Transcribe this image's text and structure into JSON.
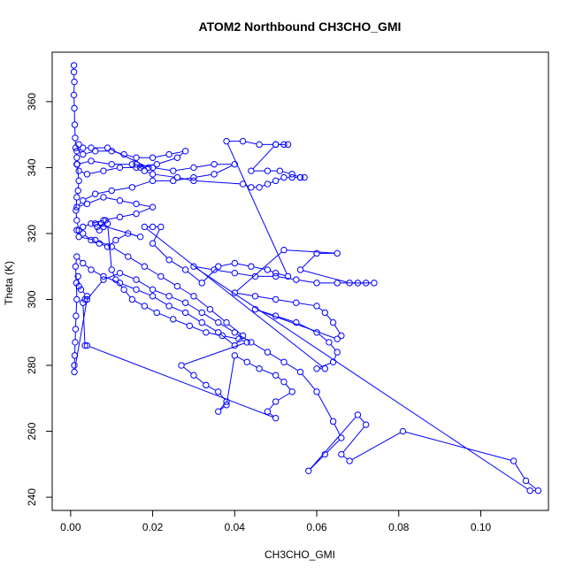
{
  "chart_data": {
    "type": "scatter",
    "title": "ATOM2 Northbound CH3CHO_GMI",
    "xlabel": "CH3CHO_GMI",
    "ylabel": "Theta (K)",
    "xlim": [
      -0.0045,
      0.1165
    ],
    "ylim": [
      236,
      375
    ],
    "xticks": [
      "0.00",
      "0.02",
      "0.04",
      "0.06",
      "0.08",
      "0.10"
    ],
    "yticks": [
      "240",
      "260",
      "280",
      "300",
      "320",
      "340",
      "360"
    ],
    "grid": false,
    "legend": "none",
    "colors": {
      "series": "#0000ff",
      "axes": "#000000"
    },
    "series": [
      {
        "points": [
          [
            0.0008,
            371
          ],
          [
            0.0008,
            369
          ],
          [
            0.0009,
            366
          ],
          [
            0.0008,
            362
          ],
          [
            0.0009,
            358
          ],
          [
            0.001,
            353
          ],
          [
            0.0011,
            349
          ],
          [
            0.0012,
            346
          ],
          [
            0.003,
            344
          ],
          [
            0.006,
            345
          ],
          [
            0.01,
            345
          ],
          [
            0.013,
            344
          ],
          [
            0.016,
            343
          ],
          [
            0.02,
            343
          ],
          [
            0.024,
            344
          ],
          [
            0.028,
            345
          ],
          [
            0.026,
            343
          ],
          [
            0.021,
            341
          ],
          [
            0.016,
            340
          ],
          [
            0.012,
            340
          ],
          [
            0.008,
            339
          ],
          [
            0.004,
            338
          ],
          [
            0.002,
            339
          ],
          [
            0.0015,
            341
          ],
          [
            0.005,
            342
          ],
          [
            0.01,
            341
          ],
          [
            0.015,
            341
          ],
          [
            0.02,
            340
          ],
          [
            0.025,
            339
          ],
          [
            0.03,
            340
          ],
          [
            0.035,
            341
          ],
          [
            0.04,
            341
          ],
          [
            0.035,
            338
          ],
          [
            0.03,
            337
          ],
          [
            0.025,
            336
          ],
          [
            0.02,
            336
          ],
          [
            0.015,
            334
          ],
          [
            0.01,
            333
          ],
          [
            0.006,
            332
          ],
          [
            0.003,
            330
          ],
          [
            0.0015,
            328
          ],
          [
            0.004,
            329
          ],
          [
            0.008,
            331
          ],
          [
            0.012,
            330
          ],
          [
            0.016,
            329
          ],
          [
            0.02,
            328
          ],
          [
            0.016,
            326
          ],
          [
            0.012,
            325
          ],
          [
            0.008,
            324
          ],
          [
            0.005,
            323
          ],
          [
            0.003,
            322
          ],
          [
            0.0015,
            321
          ],
          [
            0.002,
            319
          ],
          [
            0.006,
            318
          ],
          [
            0.01,
            316
          ],
          [
            0.014,
            313
          ],
          [
            0.018,
            310
          ],
          [
            0.022,
            307
          ],
          [
            0.026,
            304
          ],
          [
            0.03,
            301
          ],
          [
            0.034,
            297
          ],
          [
            0.038,
            293
          ],
          [
            0.042,
            289
          ],
          [
            0.04,
            286
          ],
          [
            0.036,
            290
          ],
          [
            0.032,
            293
          ],
          [
            0.028,
            296
          ],
          [
            0.024,
            298
          ],
          [
            0.02,
            301
          ],
          [
            0.016,
            303
          ],
          [
            0.012,
            305
          ],
          [
            0.008,
            307
          ],
          [
            0.005,
            309
          ],
          [
            0.003,
            311
          ],
          [
            0.0015,
            313
          ],
          [
            0.0012,
            310
          ],
          [
            0.0014,
            305
          ],
          [
            0.0015,
            300
          ],
          [
            0.0013,
            295
          ],
          [
            0.0012,
            291
          ],
          [
            0.0011,
            287
          ],
          [
            0.001,
            283
          ],
          [
            0.0009,
            280
          ],
          [
            0.0009,
            278
          ],
          [
            0.004,
            300
          ],
          [
            0.008,
            306
          ],
          [
            0.012,
            308
          ],
          [
            0.016,
            306
          ],
          [
            0.02,
            303
          ],
          [
            0.024,
            301
          ],
          [
            0.028,
            299
          ],
          [
            0.032,
            296
          ],
          [
            0.036,
            293
          ],
          [
            0.04,
            290
          ],
          [
            0.044,
            287
          ],
          [
            0.048,
            284
          ],
          [
            0.052,
            281
          ],
          [
            0.056,
            278
          ],
          [
            0.06,
            272
          ],
          [
            0.064,
            263
          ],
          [
            0.066,
            258
          ],
          [
            0.062,
            253
          ],
          [
            0.058,
            248
          ],
          [
            0.07,
            265
          ],
          [
            0.072,
            262
          ],
          [
            0.066,
            253
          ],
          [
            0.068,
            251
          ],
          [
            0.081,
            260
          ],
          [
            0.108,
            251
          ],
          [
            0.111,
            245
          ],
          [
            0.114,
            242
          ],
          [
            0.112,
            242
          ],
          [
            0.03,
            310
          ],
          [
            0.035,
            309
          ],
          [
            0.04,
            308
          ],
          [
            0.045,
            307
          ],
          [
            0.05,
            307
          ],
          [
            0.055,
            306
          ],
          [
            0.06,
            305
          ],
          [
            0.065,
            305
          ],
          [
            0.07,
            305
          ],
          [
            0.074,
            305
          ],
          [
            0.072,
            305
          ],
          [
            0.068,
            305
          ],
          [
            0.056,
            309
          ],
          [
            0.06,
            314
          ],
          [
            0.065,
            314
          ],
          [
            0.052,
            315
          ],
          [
            0.04,
            302
          ],
          [
            0.045,
            301
          ],
          [
            0.05,
            300
          ],
          [
            0.055,
            299
          ],
          [
            0.06,
            298
          ],
          [
            0.062,
            296
          ],
          [
            0.064,
            293
          ],
          [
            0.066,
            289
          ],
          [
            0.065,
            288
          ],
          [
            0.045,
            297
          ],
          [
            0.05,
            295
          ],
          [
            0.055,
            293
          ],
          [
            0.06,
            290
          ],
          [
            0.063,
            287
          ],
          [
            0.065,
            284
          ],
          [
            0.064,
            281
          ],
          [
            0.06,
            279
          ],
          [
            0.062,
            279
          ],
          [
            0.018,
            322
          ],
          [
            0.02,
            322
          ],
          [
            0.022,
            322
          ],
          [
            0.02,
            317
          ],
          [
            0.024,
            312
          ],
          [
            0.028,
            309
          ],
          [
            0.032,
            305
          ],
          [
            0.036,
            310
          ],
          [
            0.04,
            311
          ],
          [
            0.044,
            310
          ],
          [
            0.048,
            309
          ],
          [
            0.05,
            308
          ],
          [
            0.053,
            307
          ],
          [
            0.038,
            348
          ],
          [
            0.042,
            348
          ],
          [
            0.046,
            347
          ],
          [
            0.05,
            347
          ],
          [
            0.053,
            347
          ],
          [
            0.052,
            347
          ],
          [
            0.05,
            347
          ],
          [
            0.044,
            339
          ],
          [
            0.048,
            339
          ],
          [
            0.051,
            339
          ],
          [
            0.054,
            338
          ],
          [
            0.056,
            337
          ],
          [
            0.057,
            337
          ],
          [
            0.056,
            337
          ],
          [
            0.054,
            337
          ],
          [
            0.052,
            337
          ],
          [
            0.05,
            336
          ],
          [
            0.048,
            335
          ],
          [
            0.046,
            334
          ],
          [
            0.044,
            334
          ],
          [
            0.042,
            335
          ],
          [
            0.03,
            336
          ],
          [
            0.026,
            337
          ],
          [
            0.02,
            338
          ],
          [
            0.018,
            339
          ],
          [
            0.016,
            341
          ],
          [
            0.017,
            340
          ],
          [
            0.019,
            340
          ],
          [
            0.009,
            346
          ],
          [
            0.005,
            346
          ],
          [
            0.003,
            346
          ],
          [
            0.002,
            347
          ],
          [
            0.0015,
            345
          ],
          [
            0.0015,
            343
          ],
          [
            0.0016,
            341
          ],
          [
            0.002,
            336
          ],
          [
            0.0018,
            333
          ],
          [
            0.0015,
            331
          ],
          [
            0.0013,
            327
          ],
          [
            0.0015,
            324
          ],
          [
            0.002,
            321
          ],
          [
            0.003,
            320
          ],
          [
            0.005,
            318
          ],
          [
            0.007,
            317
          ],
          [
            0.009,
            316
          ],
          [
            0.011,
            318
          ],
          [
            0.014,
            320
          ],
          [
            0.017,
            319
          ],
          [
            0.006,
            323
          ],
          [
            0.0065,
            322
          ],
          [
            0.007,
            321
          ],
          [
            0.0075,
            323
          ],
          [
            0.008,
            322
          ],
          [
            0.0085,
            324
          ],
          [
            0.009,
            323
          ],
          [
            0.01,
            309
          ],
          [
            0.011,
            306
          ],
          [
            0.013,
            303
          ],
          [
            0.015,
            300
          ],
          [
            0.018,
            298
          ],
          [
            0.021,
            296
          ],
          [
            0.025,
            294
          ],
          [
            0.029,
            292
          ],
          [
            0.033,
            290
          ],
          [
            0.037,
            289
          ],
          [
            0.041,
            288
          ],
          [
            0.043,
            287
          ],
          [
            0.027,
            280
          ],
          [
            0.03,
            277
          ],
          [
            0.033,
            274
          ],
          [
            0.036,
            272
          ],
          [
            0.038,
            269
          ],
          [
            0.036,
            266
          ],
          [
            0.038,
            268
          ],
          [
            0.04,
            283
          ],
          [
            0.043,
            281
          ],
          [
            0.046,
            279
          ],
          [
            0.05,
            277
          ],
          [
            0.052,
            275
          ],
          [
            0.054,
            272
          ],
          [
            0.05,
            269
          ],
          [
            0.048,
            266
          ],
          [
            0.05,
            264
          ],
          [
            0.004,
            286
          ],
          [
            0.0035,
            286
          ],
          [
            0.003,
            299
          ],
          [
            0.0035,
            300
          ],
          [
            0.004,
            301
          ],
          [
            0.0025,
            303
          ],
          [
            0.002,
            304
          ],
          [
            0.0018,
            307
          ]
        ]
      }
    ]
  }
}
